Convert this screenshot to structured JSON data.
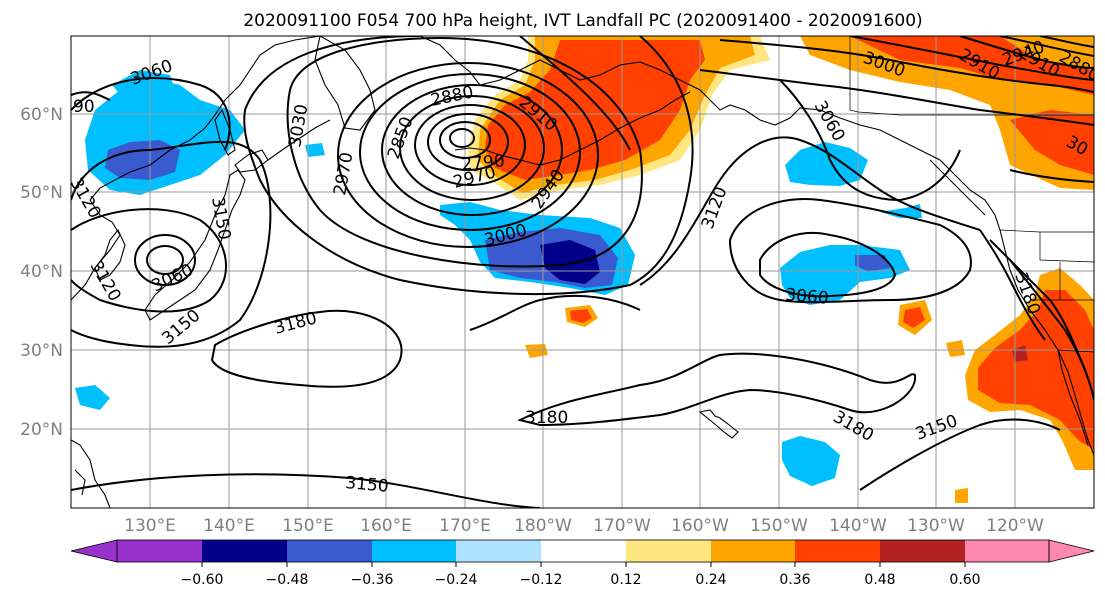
{
  "title": "2020091100 F054 700 hPa height, IVT Landfall PC (2020091400 - 2020091600)",
  "lat_labels": [
    "60°N",
    "50°N",
    "40°N",
    "30°N",
    "20°N"
  ],
  "lon_labels": [
    "130°E",
    "140°E",
    "150°E",
    "160°E",
    "170°E",
    "180°W",
    "170°W",
    "160°W",
    "150°W",
    "140°W",
    "130°W",
    "120°W"
  ],
  "colorbar": {
    "ticks": [
      "−0.60",
      "−0.48",
      "−0.36",
      "−0.24",
      "−0.12",
      "0.12",
      "0.24",
      "0.36",
      "0.48",
      "0.60"
    ],
    "colors": [
      "#9932cc",
      "#00008b",
      "#3a5bd0",
      "#00bfff",
      "#b0e2ff",
      "#ffffff",
      "#ffe680",
      "#ffa500",
      "#ff4000",
      "#b22222",
      "#ff88b0"
    ]
  },
  "contour_labels": [
    "3060",
    "90",
    "3150",
    "3120",
    "3120",
    "3060",
    "3150",
    "3030",
    "2880",
    "2910",
    "2850",
    "2970",
    "2790",
    "2970",
    "2940",
    "3000",
    "3000",
    "3120",
    "3060",
    "3060",
    "3180",
    "3180",
    "3180",
    "3150",
    "3150",
    "2910",
    "2940",
    "2910",
    "2880",
    "3000",
    "3060",
    "3180",
    "30"
  ],
  "fill_colors": {
    "blue_light": "#00bfff",
    "blue_mid": "#3a5bd0",
    "navy": "#00008b",
    "orange": "#ffa500",
    "red_orange": "#ff4000",
    "dark_red": "#b22222"
  }
}
